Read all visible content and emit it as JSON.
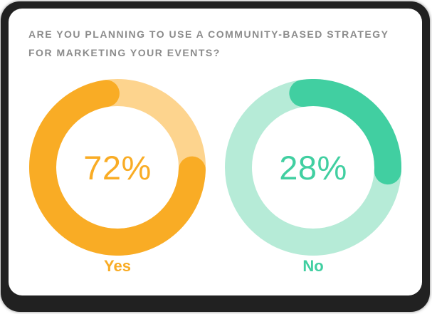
{
  "card": {
    "question": "ARE YOU PLANNING TO USE A COMMUNITY-BASED STRATEGY FOR MARKETING YOUR EVENTS?"
  },
  "colors": {
    "card_bg": "#ffffff",
    "card_shadow": "#212121",
    "question_text": "#8b8b8b",
    "yes_accent": "#f9ac25",
    "yes_track": "#fdd48e",
    "no_accent": "#41cfa1",
    "no_track": "#b6ebd7"
  },
  "chart_data": [
    {
      "type": "pie",
      "subtype": "donut",
      "title": "Are you planning to use a community-based strategy for marketing your events?",
      "category": "Yes",
      "value": 72,
      "display_value": "72%",
      "arc_color": "#f9ac25",
      "track_color": "#fdd48e",
      "arc_start_deg": 92,
      "legend_position": "bottom"
    },
    {
      "type": "pie",
      "subtype": "donut",
      "title": "Are you planning to use a community-based strategy for marketing your events?",
      "category": "No",
      "value": 28,
      "display_value": "28%",
      "arc_color": "#41cfa1",
      "track_color": "#b6ebd7",
      "arc_start_deg": -8,
      "legend_position": "bottom"
    }
  ]
}
